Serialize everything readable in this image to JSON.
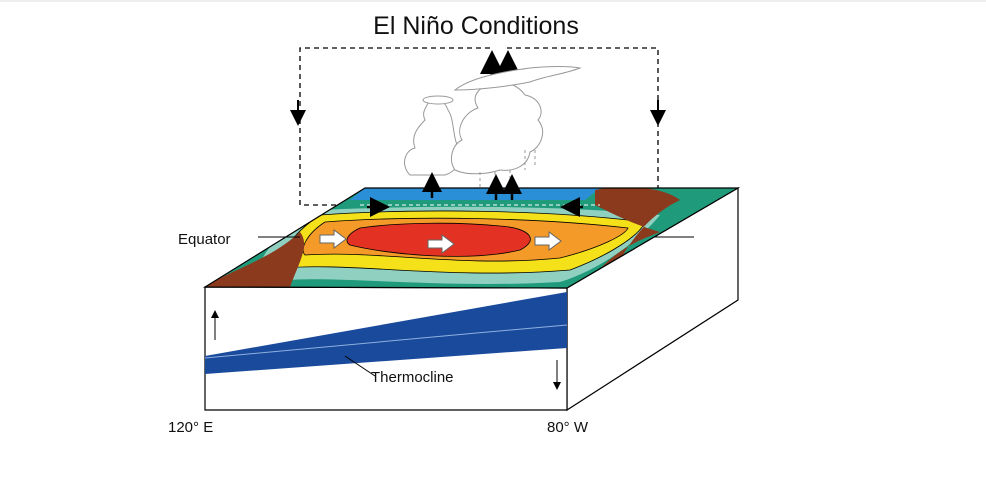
{
  "title": "El Niño Conditions",
  "labels": {
    "equator": "Equator",
    "thermocline": "Thermocline",
    "west": "120° E",
    "east": "80° W"
  }
}
